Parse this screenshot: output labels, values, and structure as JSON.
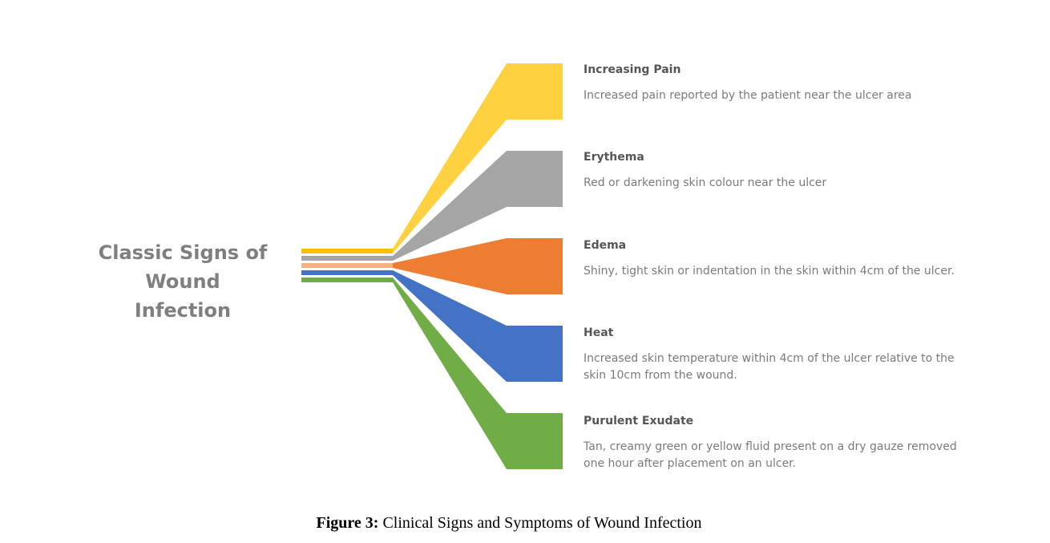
{
  "title_lines": [
    "Classic Signs of Wound",
    "Infection"
  ],
  "items": [
    {
      "title": "Increasing Pain",
      "description": "Increased pain reported by the patient near the ulcer area",
      "color": "#FFD040"
    },
    {
      "title": "Erythema",
      "description": "Red or darkening skin colour near the ulcer",
      "color": "#A5A5A5"
    },
    {
      "title": "Edema",
      "description": "Shiny, tight skin or indentation in the skin within 4cm of the ulcer.",
      "color": "#ED7D31"
    },
    {
      "title": "Heat",
      "description": "Increased skin temperature within 4cm of the ulcer relative to the skin 10cm from the wound.",
      "color": "#4472C4"
    },
    {
      "title": "Purulent Exudate",
      "description": "Tan, creamy green or yellow fluid present on a dry gauze removed one hour after placement on an ulcer.",
      "color": "#70AD47"
    }
  ],
  "stub_colors": [
    "#FFC000",
    "#A5A5A5",
    "#F4B183",
    "#4472C4",
    "#70AD47"
  ],
  "caption": {
    "label": "Figure 3:",
    "text": " Clinical Signs and Symptoms of Wound Infection"
  }
}
